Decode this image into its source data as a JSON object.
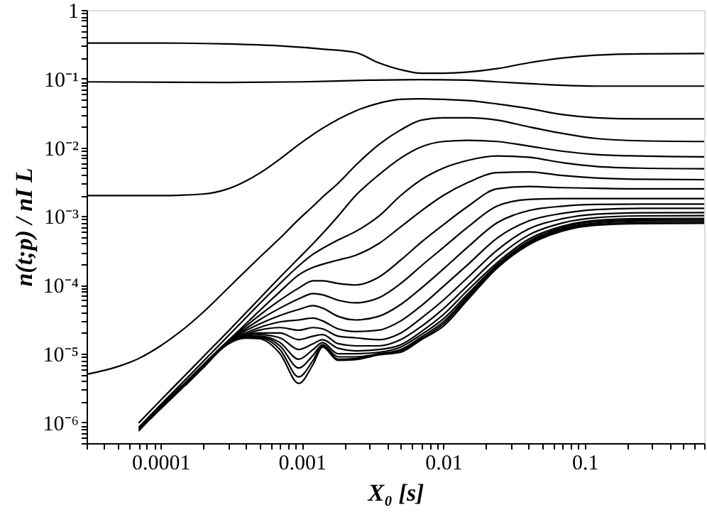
{
  "chart_data": {
    "type": "line",
    "xlabel": "X₀ [s]",
    "ylabel": "n(t;p) / nI L",
    "log": "xy",
    "grid": false,
    "line_style": "solid",
    "xlim": [
      3e-05,
      0.7
    ],
    "ylim": [
      5e-07,
      1
    ],
    "xticks": [
      {
        "value": 3e-05,
        "label": null
      },
      {
        "value": 4e-05,
        "label": null
      },
      {
        "value": 5e-05,
        "label": null
      },
      {
        "value": 6e-05,
        "label": null
      },
      {
        "value": 7e-05,
        "label": null
      },
      {
        "value": 8e-05,
        "label": null
      },
      {
        "value": 9e-05,
        "label": null
      },
      0.0001,
      {
        "value": 0.0002,
        "label": null
      },
      {
        "value": 0.0003,
        "label": null
      },
      {
        "value": 0.0004,
        "label": null
      },
      {
        "value": 0.0005,
        "label": null
      },
      {
        "value": 0.0006,
        "label": null
      },
      {
        "value": 0.0007,
        "label": null
      },
      {
        "value": 0.0008,
        "label": null
      },
      {
        "value": 0.0009,
        "label": null
      },
      0.001,
      {
        "value": 0.002,
        "label": null
      },
      {
        "value": 0.003,
        "label": null
      },
      {
        "value": 0.004,
        "label": null
      },
      {
        "value": 0.005,
        "label": null
      },
      {
        "value": 0.006,
        "label": null
      },
      {
        "value": 0.007,
        "label": null
      },
      {
        "value": 0.008,
        "label": null
      },
      {
        "value": 0.009,
        "label": null
      },
      0.01,
      {
        "value": 0.02,
        "label": null
      },
      {
        "value": 0.03,
        "label": null
      },
      {
        "value": 0.04,
        "label": null
      },
      {
        "value": 0.05,
        "label": null
      },
      {
        "value": 0.06,
        "label": null
      },
      {
        "value": 0.07,
        "label": null
      },
      {
        "value": 0.08,
        "label": null
      },
      {
        "value": 0.09,
        "label": null
      },
      0.1,
      {
        "value": 0.2,
        "label": null
      },
      {
        "value": 0.3,
        "label": null
      },
      {
        "value": 0.4,
        "label": null
      },
      {
        "value": 0.5,
        "label": null
      },
      {
        "value": 0.6,
        "label": null
      },
      {
        "value": 0.7,
        "label": null
      }
    ],
    "yticks": [
      {
        "value": 5e-07,
        "label": null
      },
      {
        "value": 6e-07,
        "label": null
      },
      {
        "value": 7e-07,
        "label": null
      },
      {
        "value": 8e-07,
        "label": null
      },
      {
        "value": 9e-07,
        "label": null
      },
      {
        "value": 1e-06,
        "label": "10⁻⁶"
      },
      {
        "value": 2e-06,
        "label": null
      },
      {
        "value": 3e-06,
        "label": null
      },
      {
        "value": 4e-06,
        "label": null
      },
      {
        "value": 5e-06,
        "label": null
      },
      {
        "value": 6e-06,
        "label": null
      },
      {
        "value": 7e-06,
        "label": null
      },
      {
        "value": 8e-06,
        "label": null
      },
      {
        "value": 9e-06,
        "label": null
      },
      {
        "value": 1e-05,
        "label": "10⁻⁵"
      },
      {
        "value": 2e-05,
        "label": null
      },
      {
        "value": 3e-05,
        "label": null
      },
      {
        "value": 4e-05,
        "label": null
      },
      {
        "value": 5e-05,
        "label": null
      },
      {
        "value": 6e-05,
        "label": null
      },
      {
        "value": 7e-05,
        "label": null
      },
      {
        "value": 8e-05,
        "label": null
      },
      {
        "value": 9e-05,
        "label": null
      },
      {
        "value": 0.0001,
        "label": "10⁻⁴"
      },
      {
        "value": 0.0002,
        "label": null
      },
      {
        "value": 0.0003,
        "label": null
      },
      {
        "value": 0.0004,
        "label": null
      },
      {
        "value": 0.0005,
        "label": null
      },
      {
        "value": 0.0006,
        "label": null
      },
      {
        "value": 0.0007,
        "label": null
      },
      {
        "value": 0.0008,
        "label": null
      },
      {
        "value": 0.0009,
        "label": null
      },
      {
        "value": 0.001,
        "label": "10⁻³"
      },
      {
        "value": 0.002,
        "label": null
      },
      {
        "value": 0.003,
        "label": null
      },
      {
        "value": 0.004,
        "label": null
      },
      {
        "value": 0.005,
        "label": null
      },
      {
        "value": 0.006,
        "label": null
      },
      {
        "value": 0.007,
        "label": null
      },
      {
        "value": 0.008,
        "label": null
      },
      {
        "value": 0.009,
        "label": null
      },
      {
        "value": 0.01,
        "label": "10⁻²"
      },
      {
        "value": 0.02,
        "label": null
      },
      {
        "value": 0.03,
        "label": null
      },
      {
        "value": 0.04,
        "label": null
      },
      {
        "value": 0.05,
        "label": null
      },
      {
        "value": 0.06,
        "label": null
      },
      {
        "value": 0.07,
        "label": null
      },
      {
        "value": 0.08,
        "label": null
      },
      {
        "value": 0.09,
        "label": null
      },
      {
        "value": 0.1,
        "label": "10⁻¹"
      },
      {
        "value": 0.2,
        "label": null
      },
      {
        "value": 0.3,
        "label": null
      },
      {
        "value": 0.4,
        "label": null
      },
      {
        "value": 0.5,
        "label": null
      },
      {
        "value": 0.6,
        "label": null
      },
      {
        "value": 0.7,
        "label": null
      },
      {
        "value": 0.8,
        "label": null
      },
      {
        "value": 0.9,
        "label": null
      },
      1
    ],
    "x": [
      7e-05,
      0.0001,
      0.00015,
      0.0002,
      0.0003,
      0.0004,
      0.0005,
      0.0007,
      0.00095,
      0.0012,
      0.0014,
      0.0018,
      0.0024,
      0.0035,
      0.005,
      0.007,
      0.01,
      0.015,
      0.024,
      0.04,
      0.07,
      0.12,
      0.25,
      0.7
    ],
    "series": [
      {
        "color": "#000000",
        "x": [
          3e-05,
          0.0001,
          0.0003,
          0.0007,
          0.0014,
          0.0024,
          0.0035,
          0.005,
          0.007,
          0.01,
          0.015,
          0.024,
          0.04,
          0.07,
          0.12,
          0.25,
          0.7
        ],
        "values": [
          0.33,
          0.33,
          0.32,
          0.3,
          0.27,
          0.24,
          0.17,
          0.135,
          0.12,
          0.12,
          0.125,
          0.14,
          0.17,
          0.2,
          0.22,
          0.23,
          0.232
        ]
      },
      {
        "color": "#000000",
        "x": [
          3e-05,
          0.0003,
          0.001,
          0.003,
          0.007,
          0.015,
          0.024,
          0.04,
          0.07,
          0.12,
          0.7
        ],
        "values": [
          0.09,
          0.088,
          0.09,
          0.095,
          0.097,
          0.095,
          0.09,
          0.085,
          0.08,
          0.078,
          0.078
        ]
      },
      {
        "color": "#000000",
        "x": [
          3e-05,
          0.0001,
          0.0002,
          0.0003,
          0.0005,
          0.0007,
          0.00095,
          0.0014,
          0.0024,
          0.0035,
          0.005,
          0.007,
          0.01,
          0.015,
          0.024,
          0.04,
          0.07,
          0.12,
          0.25,
          0.7
        ],
        "values": [
          0.002,
          0.002,
          0.0021,
          0.0025,
          0.0042,
          0.0068,
          0.011,
          0.019,
          0.034,
          0.044,
          0.05,
          0.051,
          0.05,
          0.048,
          0.043,
          0.037,
          0.03,
          0.027,
          0.026,
          0.026
        ]
      },
      {
        "color": "#000000",
        "x": [
          3e-05,
          5e-05,
          7e-05,
          0.0001,
          0.00015,
          0.0002,
          0.0003,
          0.0004,
          0.0005,
          0.0007,
          0.00095,
          0.0012,
          0.0014,
          0.0018,
          0.0024,
          0.0035,
          0.005,
          0.007,
          0.01,
          0.015,
          0.024,
          0.04,
          0.07,
          0.12,
          0.25,
          0.7
        ],
        "values": [
          5e-06,
          6.5e-06,
          8.5e-06,
          1.3e-05,
          2.4e-05,
          4e-05,
          9e-05,
          0.00016,
          0.00025,
          0.00048,
          0.0009,
          0.0014,
          0.0019,
          0.003,
          0.0055,
          0.011,
          0.018,
          0.025,
          0.027,
          0.027,
          0.025,
          0.02,
          0.016,
          0.0135,
          0.0125,
          0.0122
        ]
      },
      {
        "color": "#000000",
        "values": [
          9.8e-07,
          2.1e-06,
          4.9e-06,
          9e-06,
          2.1e-05,
          3.9e-05,
          6.3e-05,
          0.00013,
          0.000245,
          0.0004,
          0.00056,
          0.001,
          0.002,
          0.004,
          0.007,
          0.0102,
          0.0122,
          0.0127,
          0.0122,
          0.0105,
          0.0088,
          0.0079,
          0.0075,
          0.0073
        ]
      },
      {
        "color": "#000000",
        "values": [
          8.5e-07,
          1.8e-06,
          4.2e-06,
          7.7e-06,
          1.8e-05,
          3.3e-05,
          5.3e-05,
          0.000105,
          0.00019,
          0.00028,
          0.00034,
          0.00045,
          0.0006,
          0.001,
          0.002,
          0.0034,
          0.005,
          0.0065,
          0.0075,
          0.0072,
          0.006,
          0.0053,
          0.005,
          0.0049
        ]
      },
      {
        "color": "#000000",
        "x": [
          7e-05,
          0.0001,
          0.00015,
          0.0002,
          0.0003,
          0.0004,
          0.0005,
          0.0007,
          0.00095,
          0.0012,
          0.0014,
          0.0018,
          0.0024,
          0.0035,
          0.005,
          0.007,
          0.01,
          0.015,
          0.024,
          0.04,
          0.07,
          0.12,
          0.25,
          0.7
        ],
        "values": [
          7.95e-07,
          1.7e-06,
          3.82e-06,
          6.89e-06,
          1.54e-05,
          2.7e-05,
          4.2e-05,
          8e-05,
          0.00014,
          0.00018,
          0.0002,
          0.00023,
          0.00027,
          0.0004,
          0.0007,
          0.0012,
          0.002,
          0.0031,
          0.0043,
          0.0044,
          0.0039,
          0.0036,
          0.00345,
          0.0034
        ]
      },
      {
        "color": "#000000",
        "x": [
          8.5e-05,
          0.0001,
          0.00015,
          0.0002,
          0.0003,
          0.0004,
          0.0005,
          0.0007,
          0.00095,
          0.0012,
          0.0014,
          0.0018,
          0.0024,
          0.0035,
          0.005,
          0.007,
          0.01,
          0.015,
          0.024,
          0.04,
          0.07,
          0.12,
          0.25,
          0.7
        ],
        "values": [
          1.2e-06,
          1.68e-06,
          3.78e-06,
          6.83e-06,
          1.52e-05,
          2.5e-05,
          3.6e-05,
          6e-05,
          9e-05,
          0.000115,
          0.000115,
          0.000105,
          0.0001,
          0.00013,
          0.00023,
          0.00042,
          0.00075,
          0.0014,
          0.0025,
          0.0027,
          0.0026,
          0.00255,
          0.0025,
          0.0025
        ]
      },
      {
        "color": "#000000",
        "x": [
          0.0001,
          0.00015,
          0.0002,
          0.0003,
          0.0004,
          0.0005,
          0.0007,
          0.00095,
          0.0012,
          0.0014,
          0.0018,
          0.0024,
          0.0035,
          0.005,
          0.007,
          0.01,
          0.015,
          0.024,
          0.04,
          0.07,
          0.12,
          0.25,
          0.7
        ],
        "values": [
          1.66e-06,
          3.74e-06,
          6.76e-06,
          1.51e-05,
          2.3e-05,
          3.1e-05,
          4.6e-05,
          6.3e-05,
          7.5e-05,
          7.2e-05,
          6e-05,
          5.5e-05,
          6.5e-05,
          0.000105,
          0.00019,
          0.00035,
          0.0007,
          0.0014,
          0.00175,
          0.0018,
          0.0018,
          0.0018,
          0.0018
        ]
      },
      {
        "color": "#000000",
        "x": [
          0.000125,
          0.00015,
          0.0002,
          0.0003,
          0.0004,
          0.0005,
          0.0007,
          0.00095,
          0.0012,
          0.0014,
          0.0018,
          0.0024,
          0.0035,
          0.005,
          0.007,
          0.01,
          0.015,
          0.024,
          0.04,
          0.07,
          0.12,
          0.25,
          0.7
        ],
        "values": [
          2.64e-06,
          3.71e-06,
          6.7e-06,
          1.49e-05,
          2.15e-05,
          2.7e-05,
          3.6e-05,
          4.4e-05,
          5e-05,
          4.6e-05,
          3.5e-05,
          3.1e-05,
          3.5e-05,
          5.2e-05,
          9e-05,
          0.00017,
          0.00036,
          0.0008,
          0.0012,
          0.0014,
          0.00148,
          0.0015,
          0.0015
        ]
      },
      {
        "color": "#000000",
        "x": [
          0.00015,
          0.0002,
          0.0003,
          0.0004,
          0.0005,
          0.0007,
          0.00095,
          0.0012,
          0.0014,
          0.0018,
          0.0024,
          0.0035,
          0.005,
          0.007,
          0.01,
          0.015,
          0.024,
          0.04,
          0.07,
          0.12,
          0.25,
          0.7
        ],
        "values": [
          3.67e-06,
          6.63e-06,
          1.48e-05,
          2e-05,
          2.4e-05,
          2.9e-05,
          3.1e-05,
          3.3e-05,
          3e-05,
          2.3e-05,
          2.1e-05,
          2.2e-05,
          3e-05,
          5e-05,
          9.5e-05,
          0.0002,
          0.00048,
          0.00085,
          0.0011,
          0.00125,
          0.0013,
          0.0013
        ]
      },
      {
        "color": "#000000",
        "x": [
          0.0002,
          0.0003,
          0.0004,
          0.0005,
          0.0007,
          0.00095,
          0.0012,
          0.0014,
          0.0018,
          0.0024,
          0.0035,
          0.005,
          0.007,
          0.01,
          0.015,
          0.024,
          0.04,
          0.07,
          0.12,
          0.25,
          0.7
        ],
        "values": [
          6.57e-06,
          1.46e-05,
          1.9e-05,
          2.2e-05,
          2.4e-05,
          2.2e-05,
          2.4e-05,
          2.3e-05,
          1.8e-05,
          1.7e-05,
          1.6e-05,
          2e-05,
          3.3e-05,
          6e-05,
          0.00013,
          0.00032,
          0.00065,
          0.00092,
          0.00107,
          0.00112,
          0.00113
        ]
      },
      {
        "color": "#000000",
        "x": [
          7e-05,
          0.0001,
          0.00015,
          0.0002,
          0.0003,
          0.0004,
          0.0005,
          0.0007,
          0.00095,
          0.0012,
          0.0014,
          0.0018,
          0.0024,
          0.0035,
          0.005,
          0.007,
          0.01,
          0.015,
          0.024,
          0.04,
          0.07,
          0.12,
          0.25,
          0.7
        ],
        "values": [
          7.5e-07,
          1.6e-06,
          3.6e-06,
          6.5e-06,
          1.45e-05,
          1.85e-05,
          2e-05,
          2e-05,
          1.6e-05,
          1.8e-05,
          1.9e-05,
          1.4e-05,
          1.3e-05,
          1.3e-05,
          1.6e-05,
          2.5e-05,
          4.5e-05,
          0.0001,
          0.00025,
          0.00053,
          0.0008,
          0.00095,
          0.00101,
          0.00102
        ]
      },
      {
        "color": "#000000",
        "x": [
          8.5e-05,
          0.0001,
          0.00015,
          0.0002,
          0.0003,
          0.0004,
          0.0005,
          0.0007,
          0.00095,
          0.0012,
          0.0014,
          0.0018,
          0.0024,
          0.0035,
          0.005,
          0.007,
          0.01,
          0.015,
          0.024,
          0.04,
          0.07,
          0.12,
          0.25,
          0.7
        ],
        "values": [
          1.13e-06,
          1.58e-06,
          3.56e-06,
          6.44e-06,
          1.44e-05,
          1.8e-05,
          1.9e-05,
          1.7e-05,
          1.15e-05,
          1.4e-05,
          1.6e-05,
          1.2e-05,
          1.1e-05,
          1.15e-05,
          1.35e-05,
          2.1e-05,
          3.7e-05,
          8.5e-05,
          0.00021,
          0.00046,
          0.00072,
          0.00087,
          0.00092,
          0.00093
        ]
      },
      {
        "color": "#000000",
        "x": [
          0.0001,
          0.00015,
          0.0002,
          0.0003,
          0.0004,
          0.0005,
          0.0007,
          0.00095,
          0.0012,
          0.0014,
          0.0018,
          0.0024,
          0.0035,
          0.005,
          0.007,
          0.01,
          0.015,
          0.024,
          0.04,
          0.07,
          0.12,
          0.25,
          0.7
        ],
        "values": [
          1.57e-06,
          3.53e-06,
          6.37e-06,
          1.42e-05,
          1.75e-05,
          1.8e-05,
          1.45e-05,
          8.3e-06,
          1.15e-05,
          1.45e-05,
          1e-05,
          1e-05,
          1.05e-05,
          1.25e-05,
          1.9e-05,
          3.2e-05,
          7.5e-05,
          0.000195,
          0.00043,
          0.00069,
          0.00083,
          0.00088,
          0.00089
        ]
      },
      {
        "color": "#000000",
        "x": [
          0.000125,
          0.00015,
          0.0002,
          0.0003,
          0.0004,
          0.0005,
          0.0007,
          0.00095,
          0.0012,
          0.0014,
          0.0018,
          0.0024,
          0.0035,
          0.005,
          0.007,
          0.01,
          0.015,
          0.024,
          0.04,
          0.07,
          0.12,
          0.25,
          0.7
        ],
        "values": [
          2.48e-06,
          3.49e-06,
          6.31e-06,
          1.41e-05,
          1.72e-05,
          1.75e-05,
          1.3e-05,
          6.2e-06,
          9.5e-06,
          1.35e-05,
          9e-06,
          9e-06,
          1e-05,
          1.15e-05,
          1.75e-05,
          2.9e-05,
          7e-05,
          0.000185,
          0.00041,
          0.00066,
          0.00079,
          0.00084,
          0.00085
        ]
      },
      {
        "color": "#000000",
        "x": [
          0.00015,
          0.0002,
          0.0003,
          0.0004,
          0.0005,
          0.0007,
          0.00095,
          0.0012,
          0.0014,
          0.0018,
          0.0024,
          0.0035,
          0.005,
          0.007,
          0.01,
          0.015,
          0.024,
          0.04,
          0.07,
          0.12,
          0.25,
          0.7
        ],
        "values": [
          3.46e-06,
          6.24e-06,
          1.39e-05,
          1.7e-05,
          1.7e-05,
          1.15e-05,
          4.6e-06,
          8e-06,
          1.3e-05,
          8.3e-06,
          8.5e-06,
          9.8e-06,
          1.1e-05,
          1.65e-05,
          2.7e-05,
          6.6e-05,
          0.00018,
          0.000395,
          0.00063,
          0.00076,
          0.0008,
          0.00081
        ]
      },
      {
        "color": "#000000",
        "x": [
          0.0002,
          0.0003,
          0.0004,
          0.0005,
          0.0007,
          0.00095,
          0.0012,
          0.0014,
          0.0018,
          0.0024,
          0.0035,
          0.005,
          0.007,
          0.01,
          0.015,
          0.024,
          0.04,
          0.07,
          0.12,
          0.25,
          0.7
        ],
        "values": [
          6.18e-06,
          1.38e-05,
          1.68e-05,
          1.65e-05,
          1e-05,
          3.7e-06,
          7e-06,
          1.25e-05,
          8e-06,
          8.2e-06,
          9.6e-06,
          1.05e-05,
          1.6e-05,
          2.5e-05,
          6.2e-05,
          0.000175,
          0.00038,
          0.00061,
          0.00074,
          0.00078,
          0.00079
        ]
      }
    ]
  }
}
